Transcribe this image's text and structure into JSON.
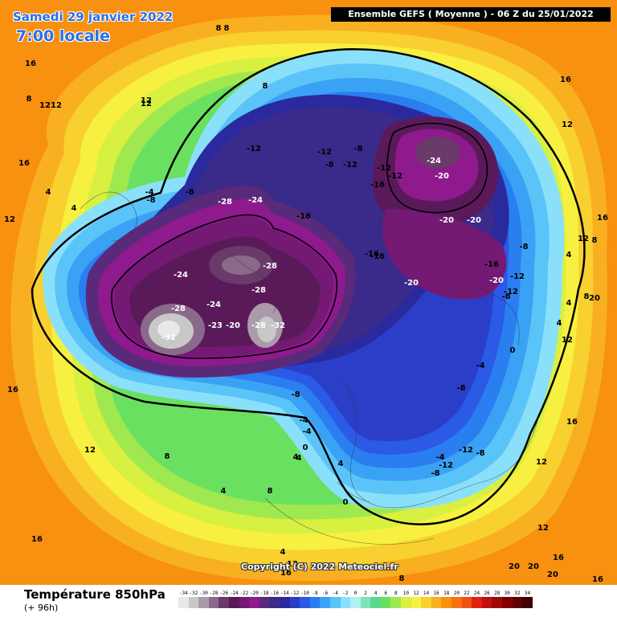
{
  "header": {
    "date": "Samedi 29 janvier 2022",
    "time": "7:00 locale",
    "run_info": "Ensemble GEFS  ( Moyenne )  - 06 Z du 25/01/2022"
  },
  "copyright": "Copyright (C) 2022 Meteociel.fr",
  "footer": {
    "title": "Température 850hPa",
    "subtitle": "(+ 96h)"
  },
  "legend": {
    "labels": [
      "-34",
      "-32",
      "-30",
      "-28",
      "-26",
      "-24",
      "-22",
      "-20",
      "-18",
      "-16",
      "-14",
      "-12",
      "-10",
      "-8",
      "-6",
      "-4",
      "-2",
      "0",
      "2",
      "4",
      "6",
      "8",
      "10",
      "12",
      "14",
      "16",
      "18",
      "20",
      "22",
      "24",
      "26",
      "28",
      "30",
      "32",
      "34"
    ],
    "colors": [
      "#e8e8e8",
      "#c8c8c8",
      "#aa9aaa",
      "#8a6a8a",
      "#6a3a6a",
      "#5a1a5a",
      "#741a74",
      "#8e1a8e",
      "#5a2a7a",
      "#3a2a8a",
      "#2a2a9e",
      "#2a3ec8",
      "#2a5ae6",
      "#2a7ef0",
      "#3aa2f4",
      "#5ac4f8",
      "#8ae0fa",
      "#b0f0f0",
      "#7ae6b8",
      "#5ad890",
      "#6ae060",
      "#a0e850",
      "#d8f040",
      "#f8f040",
      "#f8d030",
      "#f8b020",
      "#f89010",
      "#f87010",
      "#f05010",
      "#e02010",
      "#c01010",
      "#a00808",
      "#800000",
      "#600000",
      "#400000"
    ]
  },
  "map": {
    "description_colors": {
      "very_cold": "#5a1a5a",
      "cold": "#2a3ec8",
      "cool": "#5ac4f8",
      "mild": "#6ae060",
      "warm": "#f8b020"
    },
    "contour_labels": [
      {
        "t": "16"
      },
      {
        "t": "12"
      },
      {
        "t": "8"
      },
      {
        "t": "12"
      },
      {
        "t": "8"
      },
      {
        "t": "16"
      },
      {
        "t": "16"
      },
      {
        "t": "12"
      },
      {
        "t": "16"
      },
      {
        "t": "12"
      },
      {
        "t": "-12"
      },
      {
        "t": "-12"
      },
      {
        "t": "-8"
      },
      {
        "t": "-8"
      },
      {
        "t": "-12"
      },
      {
        "t": "-12"
      },
      {
        "t": "-16"
      },
      {
        "t": "-12"
      },
      {
        "t": "-24"
      },
      {
        "t": "-20"
      },
      {
        "t": "-28"
      },
      {
        "t": "-24"
      },
      {
        "t": "-16"
      },
      {
        "t": "-4"
      },
      {
        "t": "-8"
      },
      {
        "t": "-8"
      },
      {
        "t": "4"
      },
      {
        "t": "4"
      },
      {
        "t": "8"
      },
      {
        "t": "12"
      },
      {
        "t": "-24"
      },
      {
        "t": "-28"
      },
      {
        "t": "-24"
      },
      {
        "t": "-28"
      },
      {
        "t": "-28"
      },
      {
        "t": "-23"
      },
      {
        "t": "-20"
      },
      {
        "t": "-28"
      },
      {
        "t": "-32"
      },
      {
        "t": "-32"
      },
      {
        "t": "-16"
      },
      {
        "t": "-16"
      },
      {
        "t": "-20"
      },
      {
        "t": "-20"
      },
      {
        "t": "-20"
      },
      {
        "t": "-12"
      },
      {
        "t": "-8"
      },
      {
        "t": "-16"
      },
      {
        "t": "-20"
      },
      {
        "t": "-12"
      },
      {
        "t": "-8"
      },
      {
        "t": "-4"
      },
      {
        "t": "0"
      },
      {
        "t": "-4"
      },
      {
        "t": "-8"
      },
      {
        "t": "-4"
      },
      {
        "t": "0"
      },
      {
        "t": "4"
      },
      {
        "t": "8"
      },
      {
        "t": "-8"
      },
      {
        "t": "-12"
      },
      {
        "t": "-8"
      },
      {
        "t": "-4"
      },
      {
        "t": "-12"
      },
      {
        "t": "-8"
      },
      {
        "t": "4"
      },
      {
        "t": "8"
      },
      {
        "t": "12"
      },
      {
        "t": "16"
      },
      {
        "t": "4"
      },
      {
        "t": "4"
      },
      {
        "t": "8"
      },
      {
        "t": "12"
      },
      {
        "t": "16"
      },
      {
        "t": "20"
      },
      {
        "t": "20"
      },
      {
        "t": "20"
      },
      {
        "t": "20"
      },
      {
        "t": "16"
      },
      {
        "t": "16"
      },
      {
        "t": "12"
      },
      {
        "t": "12"
      },
      {
        "t": "8"
      },
      {
        "t": "4"
      },
      {
        "t": "12"
      },
      {
        "t": "16"
      },
      {
        "t": "12"
      },
      {
        "t": "16"
      },
      {
        "t": "8"
      },
      {
        "t": "4"
      },
      {
        "t": "0"
      },
      {
        "t": "4"
      },
      {
        "t": "4"
      },
      {
        "t": "12"
      },
      {
        "t": "8"
      }
    ]
  }
}
